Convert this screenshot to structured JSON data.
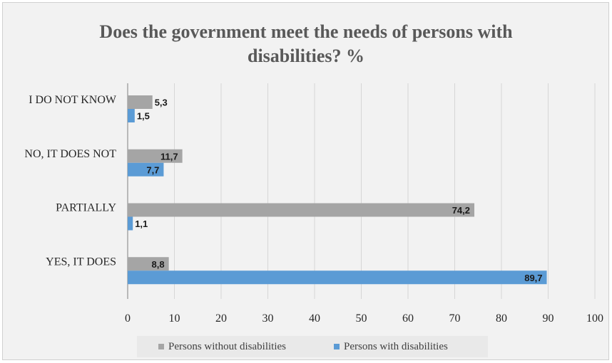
{
  "chart_data": {
    "type": "bar",
    "orientation": "horizontal",
    "title_lines": [
      "Does the government meet the needs of persons with",
      "disabilities? %"
    ],
    "categories": [
      "I DO NOT KNOW",
      "NO, IT DOES NOT",
      "PARTIALLY",
      "YES, IT DOES"
    ],
    "series": [
      {
        "name": "Persons without disabilities",
        "color": "#a5a5a5",
        "values": [
          5.3,
          11.7,
          74.2,
          8.8
        ],
        "labels": [
          "5,3",
          "11,7",
          "74,2",
          "8,8"
        ]
      },
      {
        "name": "Persons with disabilities",
        "color": "#5b9bd5",
        "values": [
          1.5,
          7.7,
          1.1,
          89.7
        ],
        "labels": [
          "1,5",
          "7,7",
          "1,1",
          "89,7"
        ]
      }
    ],
    "xlim": [
      0,
      100
    ],
    "xticks": [
      "0",
      "10",
      "20",
      "30",
      "40",
      "50",
      "60",
      "70",
      "80",
      "90",
      "100"
    ],
    "grid": true,
    "legend_position": "bottom"
  }
}
